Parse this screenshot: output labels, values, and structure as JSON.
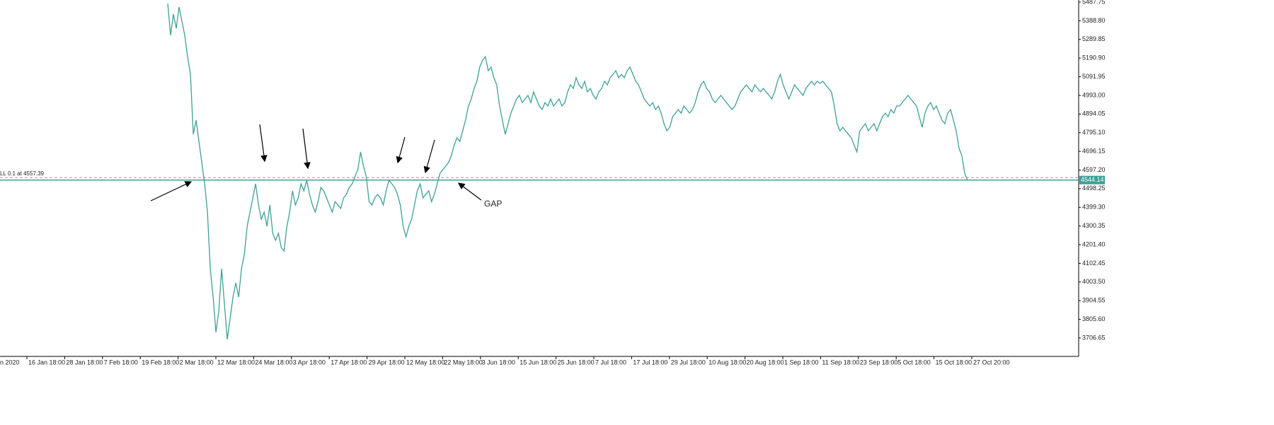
{
  "chart_data": {
    "type": "line",
    "color": "#3f9f98",
    "series": [
      {
        "values": [
          5480,
          5312,
          5424,
          5349,
          5462,
          5387,
          5312,
          5199,
          5105,
          4787,
          4862,
          4749,
          4637,
          4524,
          4374,
          4074,
          3924,
          3737,
          3849,
          4074,
          3887,
          3699,
          3812,
          3924,
          3999,
          3924,
          4074,
          4149,
          4299,
          4374,
          4449,
          4524,
          4412,
          4337,
          4374,
          4299,
          4412,
          4262,
          4224,
          4262,
          4187,
          4168,
          4299,
          4374,
          4487,
          4412,
          4449,
          4524,
          4487,
          4543,
          4468,
          4412,
          4374,
          4430,
          4505,
          4487,
          4449,
          4412,
          4374,
          4430,
          4412,
          4393,
          4449,
          4468,
          4505,
          4524,
          4562,
          4599,
          4693,
          4618,
          4562,
          4430,
          4412,
          4449,
          4468,
          4449,
          4412,
          4487,
          4543,
          4524,
          4505,
          4468,
          4412,
          4299,
          4243,
          4299,
          4337,
          4412,
          4487,
          4524,
          4449,
          4468,
          4487,
          4430,
          4468,
          4524,
          4580,
          4599,
          4618,
          4637,
          4674,
          4730,
          4768,
          4749,
          4805,
          4862,
          4937,
          4974,
          5030,
          5068,
          5143,
          5180,
          5199,
          5124,
          5143,
          5087,
          5049,
          4937,
          4862,
          4787,
          4843,
          4899,
          4937,
          4974,
          4993,
          4955,
          4974,
          4993,
          4955,
          5012,
          4974,
          4937,
          4918,
          4955,
          4937,
          4974,
          4937,
          4955,
          4974,
          4937,
          4955,
          5012,
          5049,
          5030,
          5087,
          5049,
          5030,
          5068,
          5012,
          5030,
          4993,
          4974,
          5012,
          5030,
          5068,
          5049,
          5087,
          5105,
          5124,
          5087,
          5105,
          5087,
          5124,
          5143,
          5105,
          5068,
          5049,
          5012,
          4974,
          4955,
          4937,
          4955,
          4918,
          4937,
          4899,
          4843,
          4805,
          4824,
          4880,
          4899,
          4918,
          4899,
          4937,
          4918,
          4899,
          4918,
          4955,
          5012,
          5049,
          5068,
          5030,
          5012,
          4974,
          4955,
          4974,
          4993,
          4974,
          4955,
          4937,
          4918,
          4937,
          4974,
          5012,
          5030,
          5049,
          5030,
          5012,
          5049,
          5030,
          5012,
          5030,
          5012,
          4993,
          4974,
          5012,
          5068,
          5105,
          5049,
          5012,
          4974,
          5012,
          5049,
          5030,
          5012,
          4993,
          5030,
          5049,
          5068,
          5049,
          5068,
          5057,
          5068,
          5049,
          5030,
          5012,
          4937,
          4843,
          4805,
          4824,
          4805,
          4787,
          4768,
          4730,
          4693,
          4805,
          4824,
          4843,
          4805,
          4824,
          4843,
          4805,
          4843,
          4880,
          4899,
          4880,
          4918,
          4899,
          4937,
          4937,
          4955,
          4974,
          4993,
          4974,
          4955,
          4937,
          4880,
          4824,
          4899,
          4937,
          4955,
          4918,
          4937,
          4899,
          4862,
          4843,
          4899,
          4918,
          4862,
          4805,
          4712,
          4674,
          4580,
          4543
        ]
      }
    ],
    "ylim": [
      3609,
      5499
    ],
    "yticks": [
      5487.75,
      {
        "value": 5388.8,
        "label": "5388.80"
      },
      5289.85,
      {
        "value": 5190.9,
        "label": "5190.90"
      },
      5091.95,
      {
        "value": 4993,
        "label": "4993.00"
      },
      4894.05,
      {
        "value": 4795.1,
        "label": "4795.10"
      },
      4696.15,
      {
        "value": 4597.2,
        "label": "4597.20"
      },
      4498.25,
      {
        "value": 4399.3,
        "label": "4399.30"
      },
      4300.35,
      {
        "value": 4201.4,
        "label": "4201.40"
      },
      4102.45,
      {
        "value": 4003.5,
        "label": "4003.50"
      },
      3904.55,
      {
        "value": 3805.6,
        "label": "3805.60"
      },
      3706.65
    ],
    "x_axis_labels": [
      "n 2020",
      "16 Jan 18:00",
      "28 Jan 18:00",
      "7 Feb 18:00",
      "19 Feb 18:00",
      "2 Mar 18:00",
      "12 Mar 18:00",
      "24 Mar 18:00",
      "3 Apr 18:00",
      "17 Apr 18:00",
      "29 Apr 18:00",
      "12 May 18:00",
      "22 May 18:00",
      "3 Jun 18:00",
      "15 Jun 18:00",
      "25 Jun 18:00",
      "7 Jul 18:00",
      "17 Jul 18:00",
      "29 Jul 18:00",
      "10 Aug 18:00",
      "20 Aug 18:00",
      "1 Sep 18:00",
      "11 Sep 18:00",
      "23 Sep 18:00",
      "5 Oct 18:00",
      "15 Oct 18:00",
      "27 Oct 20:00"
    ],
    "price_line": 4544.14,
    "order_line": 4557.39,
    "order_label": "LL 0.1 at 4557.39",
    "annotation": "GAP"
  }
}
